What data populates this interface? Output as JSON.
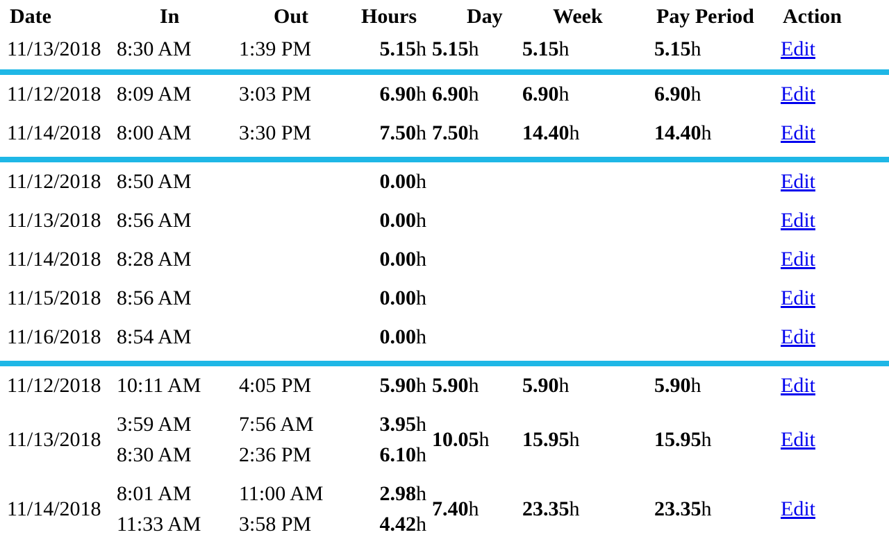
{
  "headers": {
    "date": "Date",
    "in": "In",
    "out": "Out",
    "hours": "Hours",
    "day": "Day",
    "week": "Week",
    "pay_period": "Pay Period",
    "action": "Action"
  },
  "unit": "h",
  "edit_label": "Edit",
  "rows": [
    {
      "date": "11/13/2018",
      "in": "8:30 AM",
      "out": "1:39 PM",
      "hours": "5.15",
      "day": "5.15",
      "week": "5.15",
      "pay": "5.15"
    },
    {
      "date": "11/12/2018",
      "in": "8:09 AM",
      "out": "3:03 PM",
      "hours": "6.90",
      "day": "6.90",
      "week": "6.90",
      "pay": "6.90"
    },
    {
      "date": "11/14/2018",
      "in": "8:00 AM",
      "out": "3:30 PM",
      "hours": "7.50",
      "day": "7.50",
      "week": "14.40",
      "pay": "14.40"
    },
    {
      "date": "11/12/2018",
      "in": "8:50 AM",
      "out": "",
      "hours": "0.00",
      "day": "",
      "week": "",
      "pay": ""
    },
    {
      "date": "11/13/2018",
      "in": "8:56 AM",
      "out": "",
      "hours": "0.00",
      "day": "",
      "week": "",
      "pay": ""
    },
    {
      "date": "11/14/2018",
      "in": "8:28 AM",
      "out": "",
      "hours": "0.00",
      "day": "",
      "week": "",
      "pay": ""
    },
    {
      "date": "11/15/2018",
      "in": "8:56 AM",
      "out": "",
      "hours": "0.00",
      "day": "",
      "week": "",
      "pay": ""
    },
    {
      "date": "11/16/2018",
      "in": "8:54 AM",
      "out": "",
      "hours": "0.00",
      "day": "",
      "week": "",
      "pay": ""
    },
    {
      "date": "11/12/2018",
      "in": "10:11 AM",
      "out": "4:05 PM",
      "hours": "5.90",
      "day": "5.90",
      "week": "5.90",
      "pay": "5.90"
    },
    {
      "date": "11/13/2018",
      "in": "3:59 AM",
      "out": "7:56 AM",
      "hours": "3.95",
      "in2": "8:30 AM",
      "out2": "2:36 PM",
      "hours2": "6.10",
      "day": "10.05",
      "week": "15.95",
      "pay": "15.95"
    },
    {
      "date": "11/14/2018",
      "in": "8:01 AM",
      "out": "11:00 AM",
      "hours": "2.98",
      "in2": "11:33 AM",
      "out2": "3:58 PM",
      "hours2": "4.42",
      "day": "7.40",
      "week": "23.35",
      "pay": "23.35"
    }
  ],
  "colors": {
    "separator": "#1fb7e6",
    "link": "#0000ee"
  }
}
